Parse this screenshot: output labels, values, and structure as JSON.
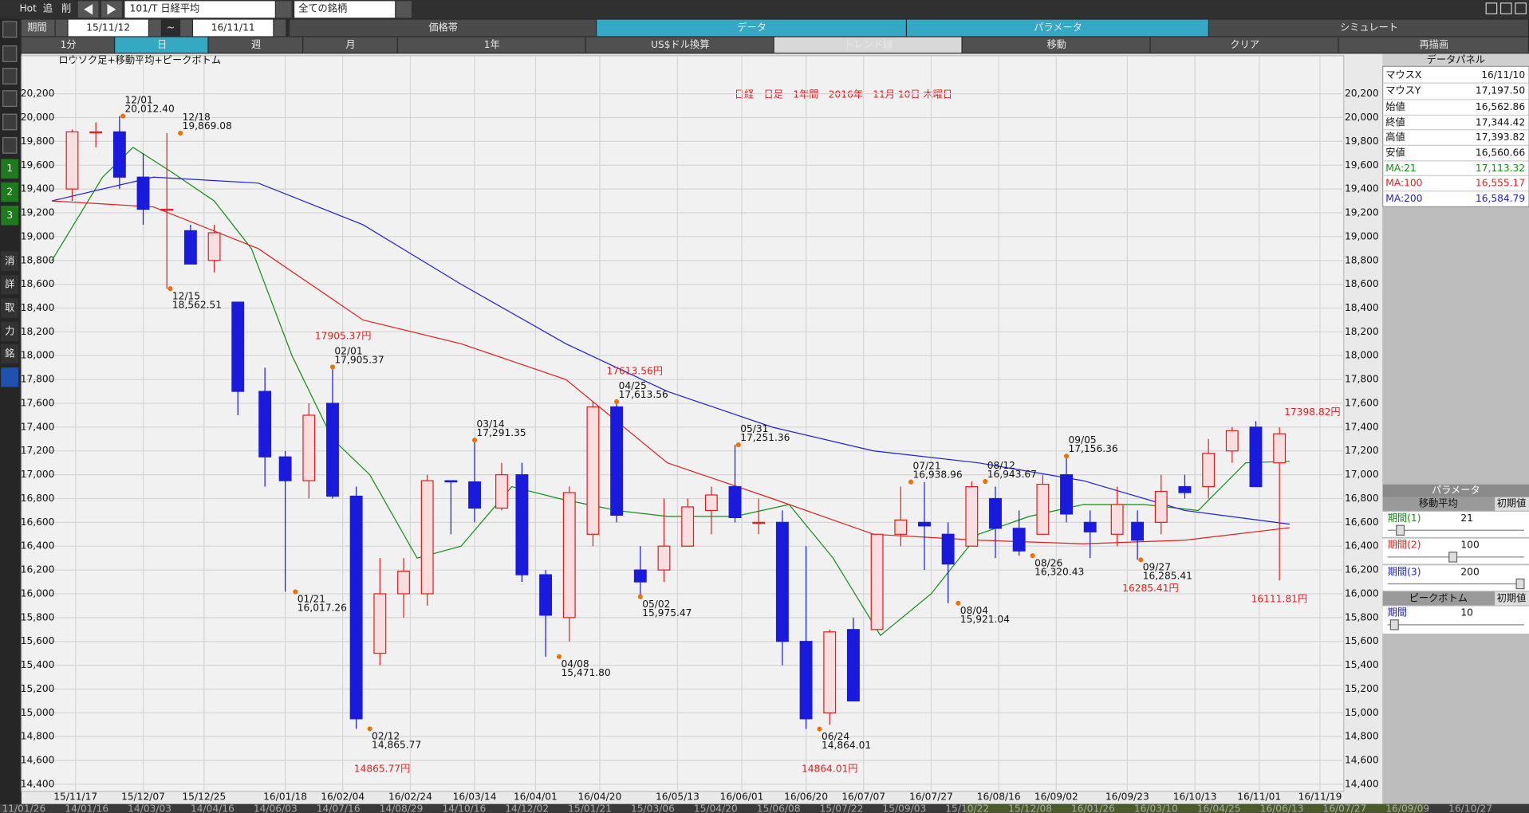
{
  "toolbar": {
    "hot": "Hot",
    "add": "追",
    "del": "削",
    "symbol": "101/T 日経平均",
    "filter": "全ての銘柄"
  },
  "period": {
    "label": "期間",
    "from": "15/11/12",
    "sep": "~",
    "to": "16/11/11"
  },
  "tabs": [
    "価格帯",
    "データ",
    "パラメータ",
    "シミュレート"
  ],
  "buttons": [
    "1分",
    "日",
    "週",
    "月",
    "1年",
    "US$ドル換算",
    "トレンド線",
    "移動",
    "クリア",
    "再描画"
  ],
  "side_tools": [
    "1",
    "2",
    "3",
    "消",
    "詳",
    "取",
    "力",
    "銘"
  ],
  "chart_data": {
    "type": "candlestick",
    "subtitle": "ロウソク足+移動平均+ピークボトム",
    "title": "日経　日足　1年間　2016年　11月 10日 木曜日",
    "xlim": [
      "15/11/01",
      "16/11/26"
    ],
    "xticks": [
      "15/11/17",
      "15/12/07",
      "15/12/25",
      "16/01/18",
      "16/02/04",
      "16/02/24",
      "16/03/14",
      "16/04/01",
      "16/04/20",
      "16/05/13",
      "16/06/01",
      "16/06/20",
      "16/07/07",
      "16/07/27",
      "16/08/16",
      "16/09/02",
      "16/09/23",
      "16/10/13",
      "16/11/01",
      "16/11/19"
    ],
    "ylim": [
      14340,
      20520
    ],
    "yticks": [
      {
        "value": 20200,
        "label": "20,200"
      },
      {
        "value": 20000,
        "label": "20,000"
      },
      {
        "value": 19800,
        "label": "19,800"
      },
      {
        "value": 19600,
        "label": "19,600"
      },
      {
        "value": 19400,
        "label": "19,400"
      },
      {
        "value": 19200,
        "label": "19,200"
      },
      {
        "value": 19000,
        "label": "19,000"
      },
      {
        "value": 18800,
        "label": "18,800"
      },
      {
        "value": 18600,
        "label": "18,600"
      },
      {
        "value": 18400,
        "label": "18,400"
      },
      {
        "value": 18200,
        "label": "18,200"
      },
      {
        "value": 18000,
        "label": "18,000"
      },
      {
        "value": 17800,
        "label": "17,800"
      },
      {
        "value": 17600,
        "label": "17,600"
      },
      {
        "value": 17400,
        "label": "17,400"
      },
      {
        "value": 17200,
        "label": "17,200"
      },
      {
        "value": 17000,
        "label": "17,000"
      },
      {
        "value": 16800,
        "label": "16,800"
      },
      {
        "value": 16600,
        "label": "16,600"
      },
      {
        "value": 16400,
        "label": "16,400"
      },
      {
        "value": 16200,
        "label": "16,200"
      },
      {
        "value": 16000,
        "label": "16,000"
      },
      {
        "value": 15800,
        "label": "15,800"
      },
      {
        "value": 15600,
        "label": "15,600"
      },
      {
        "value": 15400,
        "label": "15,400"
      },
      {
        "value": 15200,
        "label": "15,200"
      },
      {
        "value": 15000,
        "label": "15,000"
      },
      {
        "value": 14800,
        "label": "14,800"
      },
      {
        "value": 14600,
        "label": "14,600"
      },
      {
        "value": 14400,
        "label": "14,400"
      }
    ],
    "grid": true,
    "up_color": "#e02020",
    "down_color": "#1a1adc",
    "x": [
      "15/11/16",
      "15/11/23",
      "15/11/30",
      "15/12/07",
      "15/12/14",
      "15/12/21",
      "15/12/28",
      "16/01/04",
      "16/01/12",
      "16/01/18",
      "16/01/25",
      "16/02/01",
      "16/02/08",
      "16/02/15",
      "16/02/22",
      "16/02/29",
      "16/03/07",
      "16/03/14",
      "16/03/22",
      "16/03/28",
      "16/04/04",
      "16/04/11",
      "16/04/18",
      "16/04/25",
      "16/05/02",
      "16/05/09",
      "16/05/16",
      "16/05/23",
      "16/05/30",
      "16/06/06",
      "16/06/13",
      "16/06/20",
      "16/06/27",
      "16/07/04",
      "16/07/11",
      "16/07/18",
      "16/07/25",
      "16/08/01",
      "16/08/08",
      "16/08/15",
      "16/08/22",
      "16/08/29",
      "16/09/05",
      "16/09/12",
      "16/09/20",
      "16/09/26",
      "16/10/03",
      "16/10/10",
      "16/10/17",
      "16/10/24",
      "16/10/31",
      "16/11/07"
    ],
    "open": [
      19400,
      19880,
      19880,
      19500,
      19230,
      19050,
      18800,
      18450,
      17700,
      17150,
      16950,
      17600,
      16820,
      15500,
      16000,
      16000,
      16950,
      16940,
      16720,
      17000,
      16160,
      15800,
      16500,
      17570,
      16200,
      16200,
      16400,
      16700,
      16900,
      16600,
      16600,
      15600,
      15000,
      15700,
      15700,
      16500,
      16600,
      16500,
      16400,
      16800,
      16550,
      16500,
      17000,
      16600,
      16500,
      16600,
      16600,
      16900,
      16900,
      17200,
      17400,
      17100
    ],
    "high": [
      19900,
      19960,
      20012.4,
      19700,
      19869.08,
      19100,
      19100,
      18450,
      17900,
      17200,
      17600,
      17905.37,
      16900,
      16300,
      16300,
      17000,
      16950,
      17291.35,
      17100,
      17100,
      16200,
      16900,
      17613.56,
      17613.56,
      16400,
      16800,
      16800,
      16900,
      17251.36,
      16800,
      16700,
      16400,
      15700,
      15800,
      16500,
      16900,
      16938.96,
      16600,
      16943.67,
      16900,
      16700,
      17000,
      17156.36,
      16700,
      16900,
      16700,
      17000,
      17000,
      17300,
      17400,
      17450,
      17398.82
    ],
    "low": [
      19300,
      19750,
      19400,
      19100,
      18562.51,
      18770,
      18700,
      17500,
      16900,
      16017.26,
      16800,
      16800,
      14865.77,
      15400,
      15800,
      15900,
      16500,
      16600,
      16700,
      16100,
      15471.8,
      15600,
      16400,
      16600,
      15975.47,
      16100,
      16400,
      16500,
      16600,
      16500,
      15400,
      14864.01,
      14900,
      15100,
      15700,
      16400,
      16200,
      15921.04,
      16400,
      16300,
      16320.43,
      16500,
      16600,
      16300,
      16400,
      16285.41,
      16500,
      16800,
      16800,
      17100,
      16900,
      16111.81
    ],
    "close": [
      19880,
      19880,
      19500,
      19230,
      19230,
      18770,
      19033,
      17700,
      17150,
      16950,
      17500,
      16820,
      14950,
      16000,
      16190,
      16950,
      16940,
      16720,
      17000,
      16160,
      15820,
      16850,
      17570,
      16660,
      16100,
      16400,
      16730,
      16830,
      16640,
      16600,
      15600,
      14950,
      15680,
      15100,
      16500,
      16620,
      16570,
      16250,
      16900,
      16550,
      16360,
      16920,
      16670,
      16520,
      16750,
      16450,
      16860,
      16850,
      17180,
      17370,
      16900,
      17344
    ],
    "ma": [
      {
        "color": "#109010",
        "x": [
          "15/11/10",
          "15/11/25",
          "15/12/04",
          "15/12/15",
          "15/12/28",
          "16/01/08",
          "16/01/20",
          "16/02/01",
          "16/02/12",
          "16/02/26",
          "16/03/10",
          "16/03/25",
          "16/04/08",
          "16/04/25",
          "16/05/10",
          "16/05/30",
          "16/06/15",
          "16/06/28",
          "16/07/12",
          "16/07/27",
          "16/08/10",
          "16/08/25",
          "16/09/10",
          "16/09/28",
          "16/10/14",
          "16/10/28",
          "16/11/10"
        ],
        "values": [
          18800,
          19500,
          19750,
          19550,
          19300,
          18900,
          18000,
          17300,
          17000,
          16300,
          16400,
          16900,
          16800,
          16700,
          16650,
          16650,
          16750,
          16300,
          15650,
          16000,
          16500,
          16650,
          16750,
          16750,
          16700,
          17100,
          17113.32
        ]
      },
      {
        "color": "#e02020",
        "x": [
          "15/11/10",
          "15/12/10",
          "16/01/10",
          "16/02/10",
          "16/03/10",
          "16/04/10",
          "16/05/10",
          "16/06/10",
          "16/07/10",
          "16/08/10",
          "16/09/10",
          "16/10/10",
          "16/11/10"
        ],
        "values": [
          19300,
          19250,
          18900,
          18300,
          18100,
          17800,
          17100,
          16800,
          16500,
          16450,
          16420,
          16450,
          16555.17
        ]
      },
      {
        "color": "#2020d0",
        "x": [
          "15/11/10",
          "15/12/10",
          "16/01/10",
          "16/02/10",
          "16/03/10",
          "16/04/10",
          "16/05/10",
          "16/06/10",
          "16/07/10",
          "16/08/10",
          "16/09/10",
          "16/10/10",
          "16/11/10"
        ],
        "values": [
          19300,
          19500,
          19450,
          19100,
          18600,
          18100,
          17700,
          17400,
          17200,
          17100,
          16950,
          16700,
          16584.79
        ]
      }
    ],
    "peaks": [
      {
        "date": "12/01",
        "value_label": "20,012.40",
        "x": "15/12/01",
        "y": 20012.4,
        "side": "top"
      },
      {
        "date": "12/18",
        "value_label": "19,869.08",
        "x": "15/12/18",
        "y": 19869.08,
        "side": "top"
      },
      {
        "date": "12/15",
        "value_label": "18,562.51",
        "x": "15/12/15",
        "y": 18562.51,
        "side": "bottom"
      },
      {
        "date": "01/21",
        "value_label": "16,017.26",
        "x": "16/01/21",
        "y": 16017.26,
        "side": "bottom"
      },
      {
        "date": "02/01",
        "value_label": "17,905.37",
        "x": "16/02/01",
        "y": 17905.37,
        "side": "top"
      },
      {
        "date": "02/12",
        "value_label": "14,865.77",
        "x": "16/02/12",
        "y": 14865.77,
        "side": "bottom"
      },
      {
        "date": "03/14",
        "value_label": "17,291.35",
        "x": "16/03/14",
        "y": 17291.35,
        "side": "top"
      },
      {
        "date": "04/08",
        "value_label": "15,471.80",
        "x": "16/04/08",
        "y": 15471.8,
        "side": "bottom"
      },
      {
        "date": "04/25",
        "value_label": "17,613.56",
        "x": "16/04/25",
        "y": 17613.56,
        "side": "top"
      },
      {
        "date": "05/02",
        "value_label": "15,975.47",
        "x": "16/05/02",
        "y": 15975.47,
        "side": "bottom"
      },
      {
        "date": "05/31",
        "value_label": "17,251.36",
        "x": "16/05/31",
        "y": 17251.36,
        "side": "top"
      },
      {
        "date": "06/24",
        "value_label": "14,864.01",
        "x": "16/06/24",
        "y": 14864.01,
        "side": "bottom"
      },
      {
        "date": "07/21",
        "value_label": "16,938.96",
        "x": "16/07/21",
        "y": 16938.96,
        "side": "top"
      },
      {
        "date": "08/04",
        "value_label": "15,921.04",
        "x": "16/08/04",
        "y": 15921.04,
        "side": "bottom"
      },
      {
        "date": "08/12",
        "value_label": "16,943.67",
        "x": "16/08/12",
        "y": 16943.67,
        "side": "top"
      },
      {
        "date": "08/26",
        "value_label": "16,320.43",
        "x": "16/08/26",
        "y": 16320.43,
        "side": "bottom"
      },
      {
        "date": "09/05",
        "value_label": "17,156.36",
        "x": "16/09/05",
        "y": 17156.36,
        "side": "top"
      },
      {
        "date": "09/27",
        "value_label": "16,285.41",
        "x": "16/09/27",
        "y": 16285.41,
        "side": "bottom"
      }
    ],
    "callouts": [
      "17905.37円",
      "17613.56円",
      "14865.77円",
      "14864.01円",
      "16285.41円",
      "16111.81円",
      "17398.82円"
    ]
  },
  "data_panel": {
    "title": "データパネル",
    "rows": [
      {
        "label": "マウスX",
        "value": "16/11/10"
      },
      {
        "label": "マウスY",
        "value": "17,197.50"
      },
      {
        "label": "始値",
        "value": "16,562.86"
      },
      {
        "label": "終値",
        "value": "17,344.42"
      },
      {
        "label": "高値",
        "value": "17,393.82"
      },
      {
        "label": "安値",
        "value": "16,560.66"
      },
      {
        "label": "MA:21",
        "value": "17,113.32"
      },
      {
        "label": "MA:100",
        "value": "16,555.17"
      },
      {
        "label": "MA:200",
        "value": "16,584.79"
      }
    ]
  },
  "param_panel": {
    "title": "パラメータ",
    "ma_title": "移動平均",
    "reset": "初期値",
    "ma": [
      {
        "label": "期間(1)",
        "value": 21
      },
      {
        "label": "期間(2)",
        "value": 100
      },
      {
        "label": "期間(3)",
        "value": 200
      }
    ],
    "peak_title": "ピークボトム",
    "peak_reset": "初期値",
    "peak": {
      "label": "期間",
      "value": 10
    }
  },
  "bottom_strip": [
    "11/01/26",
    "14/01/16",
    "14/03/03",
    "14/04/16",
    "14/06/03",
    "14/07/16",
    "14/08/29",
    "14/10/16",
    "14/12/02",
    "15/01/21",
    "15/03/06",
    "15/04/20",
    "15/06/08",
    "15/07/22",
    "15/09/03",
    "15/10/22",
    "15/12/08",
    "16/01/26",
    "16/03/10",
    "16/04/25",
    "16/06/13",
    "16/07/27",
    "16/09/09",
    "16/10/27"
  ]
}
